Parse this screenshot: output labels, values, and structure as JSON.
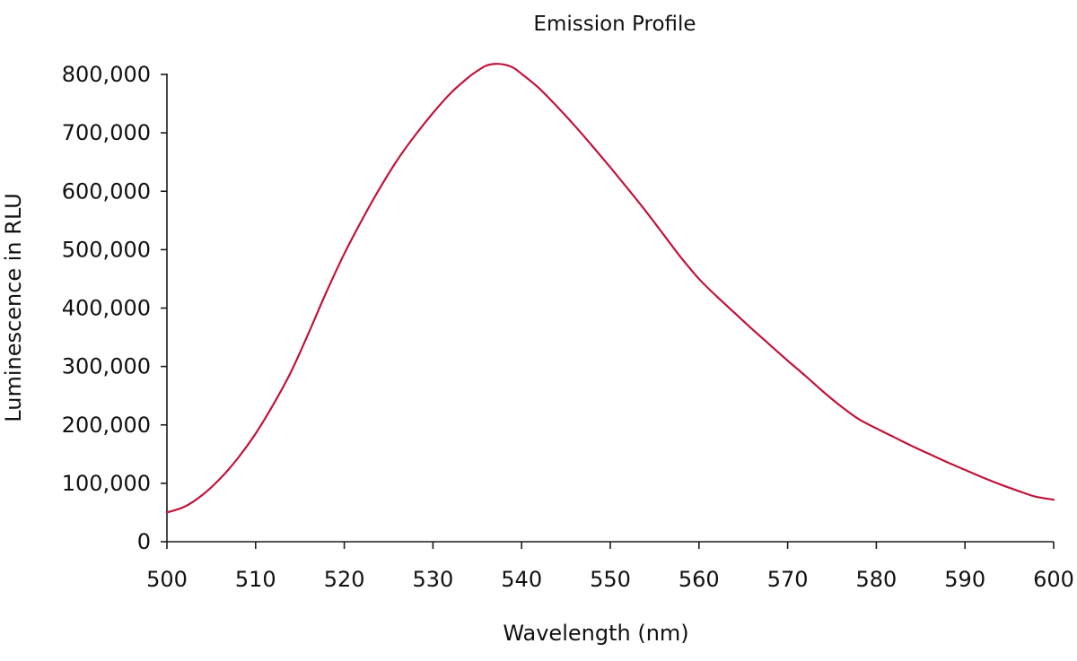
{
  "chart_data": {
    "type": "line",
    "title": "Emission Profile",
    "xlabel": "Wavelength (nm)",
    "ylabel": "Luminescence in RLU",
    "xlim": [
      500,
      600
    ],
    "ylim": [
      0,
      800000
    ],
    "x_ticks": [
      500,
      510,
      520,
      530,
      540,
      550,
      560,
      570,
      580,
      590,
      600
    ],
    "x_tick_labels": [
      "500",
      "510",
      "520",
      "530",
      "540",
      "550",
      "560",
      "570",
      "580",
      "590",
      "600"
    ],
    "y_ticks": [
      0,
      100000,
      200000,
      300000,
      400000,
      500000,
      600000,
      700000,
      800000
    ],
    "y_tick_labels": [
      "0",
      "100,000",
      "200,000",
      "300,000",
      "400,000",
      "500,000",
      "600,000",
      "700,000",
      "800,000"
    ],
    "grid": false,
    "legend": false,
    "series": [
      {
        "color": "#c0143c",
        "x": [
          500,
          502,
          504,
          506,
          508,
          510,
          512,
          514,
          516,
          518,
          520,
          522,
          524,
          526,
          528,
          530,
          532,
          534,
          535,
          536,
          537,
          538,
          539,
          540,
          542,
          544,
          546,
          548,
          550,
          552,
          554,
          556,
          558,
          560,
          562,
          564,
          566,
          568,
          570,
          572,
          574,
          576,
          578,
          580,
          582,
          584,
          586,
          588,
          590,
          592,
          594,
          596,
          598,
          600
        ],
        "y": [
          50000,
          60000,
          80000,
          108000,
          143000,
          185000,
          235000,
          291000,
          358000,
          428000,
          493000,
          551000,
          605000,
          654000,
          696000,
          734000,
          768000,
          795000,
          806000,
          815000,
          818000,
          817000,
          812000,
          801000,
          776000,
          745000,
          712000,
          677000,
          641000,
          604000,
          566000,
          526000,
          486000,
          450000,
          420000,
          392000,
          364000,
          337000,
          310000,
          284000,
          257000,
          232000,
          210000,
          194000,
          179000,
          164000,
          150000,
          136000,
          123000,
          110000,
          98000,
          87000,
          77000,
          72000
        ]
      }
    ]
  }
}
